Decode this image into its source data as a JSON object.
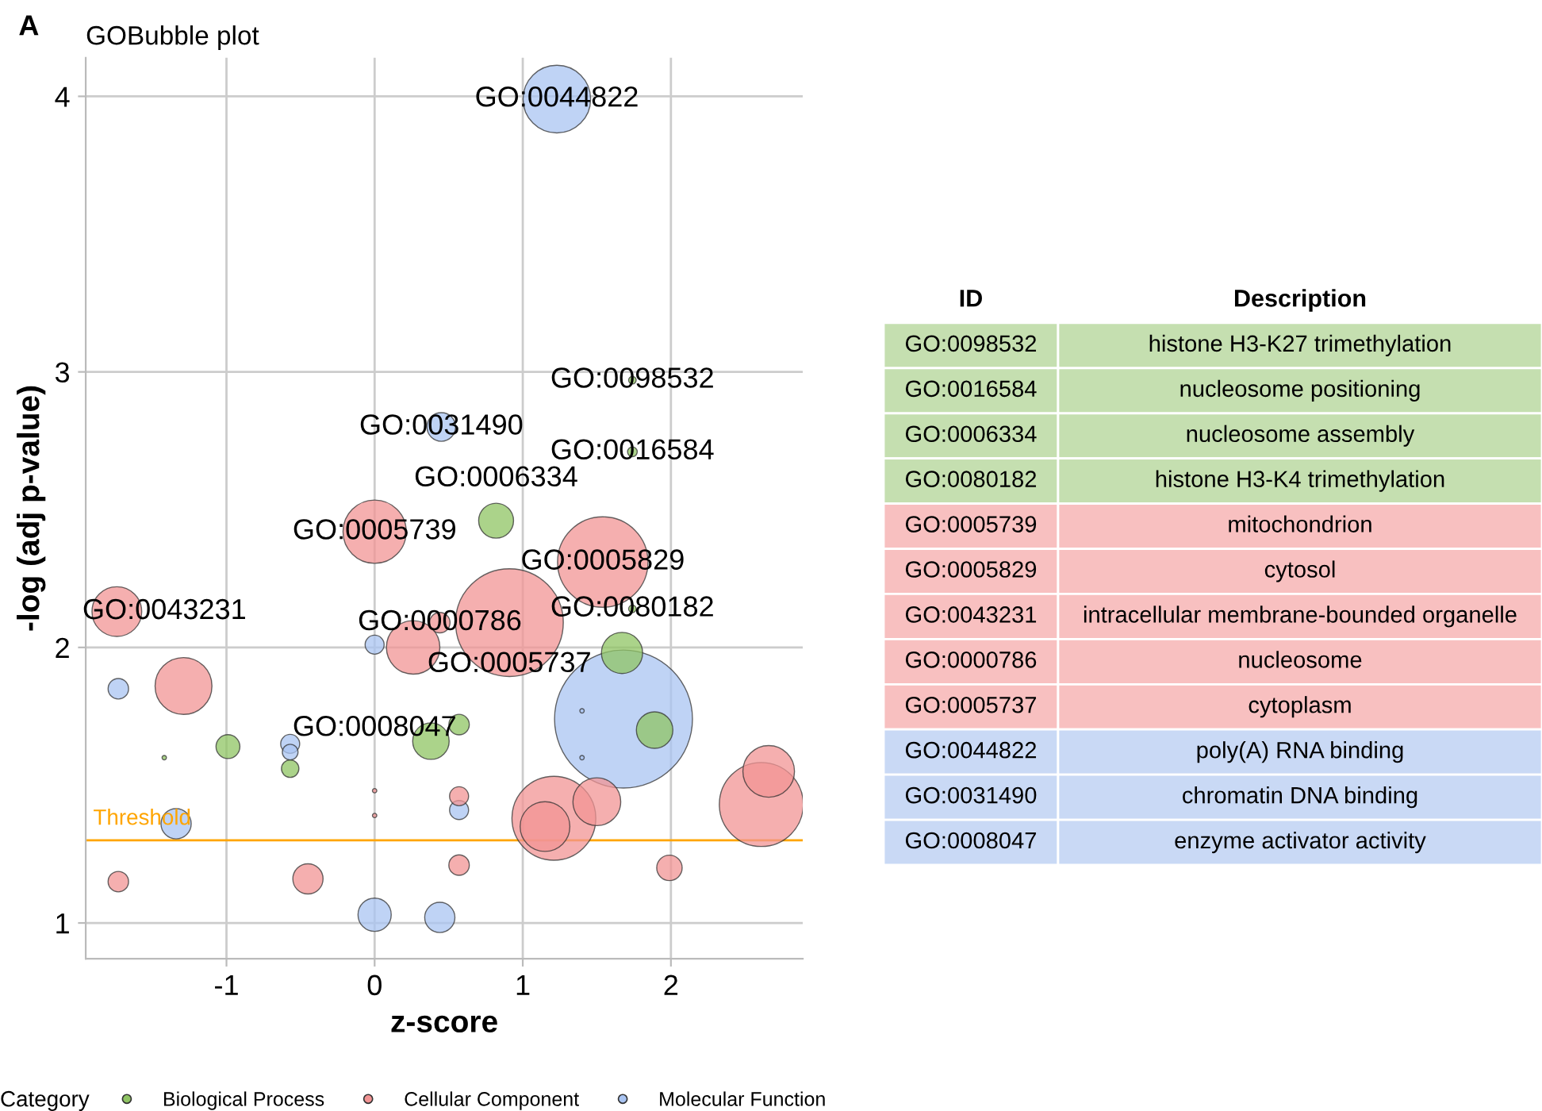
{
  "chart_data": [
    {
      "type": "bubble",
      "title": "GOBubble plot",
      "xlabel": "z-score",
      "ylabel": "-log (adj p-value)",
      "legend_title": "Category",
      "xlim": [
        -1.95,
        2.89
      ],
      "ylim": [
        0.87,
        4.14
      ],
      "xticks": [
        -1,
        0,
        1,
        2
      ],
      "yticks": [
        1,
        2,
        3,
        4
      ],
      "grid": true,
      "legend": "bottom",
      "ref_lines": [
        {
          "axis": "y",
          "value": 1.3,
          "label": "Threshold",
          "color": "#ffa500"
        }
      ],
      "series": [
        {
          "name": "Biological Process",
          "color": "#8fc463",
          "x": [
            1.74,
            1.74,
            0.82,
            1.74,
            1.67,
            1.89,
            -0.99,
            -1.42,
            -0.57,
            0.38,
            0.57
          ],
          "values": [
            2.97,
            2.71,
            2.46,
            2.14,
            1.98,
            1.7,
            1.64,
            1.6,
            1.56,
            1.66,
            1.72
          ],
          "sizes": [
            0.003,
            0.005,
            0.064,
            0.003,
            0.089,
            0.07,
            0.03,
            0.001,
            0.016,
            0.07,
            0.022
          ]
        },
        {
          "name": "Cellular Component",
          "color": "#f29494",
          "x": [
            0.0,
            1.54,
            -1.74,
            0.91,
            0.44,
            0.26,
            -1.29,
            0.0,
            0.0,
            0.57,
            1.21,
            1.15,
            1.5,
            2.61,
            2.66,
            -1.73,
            -0.45,
            0.57,
            1.99
          ],
          "values": [
            2.42,
            2.31,
            2.13,
            2.09,
            2.09,
            2.0,
            1.86,
            1.48,
            1.39,
            1.46,
            1.38,
            1.35,
            1.44,
            1.43,
            1.55,
            1.15,
            1.16,
            1.21,
            1.2
          ],
          "sizes": [
            0.21,
            0.43,
            0.13,
            0.61,
            0.022,
            0.15,
            0.17,
            0.001,
            0.001,
            0.019,
            0.37,
            0.13,
            0.12,
            0.37,
            0.14,
            0.022,
            0.048,
            0.022,
            0.034
          ]
        },
        {
          "name": "Molecular Function",
          "color": "#a9c4f2",
          "x": [
            1.23,
            0.45,
            0.0,
            -1.73,
            1.68,
            1.4,
            1.4,
            -0.57,
            -0.57,
            0.57,
            -1.34,
            0.0,
            0.44
          ],
          "values": [
            3.99,
            2.8,
            2.01,
            1.85,
            1.74,
            1.77,
            1.6,
            1.65,
            1.62,
            1.41,
            1.36,
            1.03,
            1.02
          ],
          "sizes": [
            0.24,
            0.043,
            0.019,
            0.022,
            1,
            0.001,
            0.001,
            0.019,
            0.013,
            0.019,
            0.048,
            0.058,
            0.048
          ]
        }
      ],
      "annotations": [
        "A",
        {
          "text": "GO:0044822",
          "x": 1.23,
          "y": 3.99
        },
        {
          "text": "GO:0098532",
          "x": 1.74,
          "y": 2.97
        },
        {
          "text": "GO:0031490",
          "x": 0.45,
          "y": 2.8
        },
        {
          "text": "GO:0016584",
          "x": 1.74,
          "y": 2.71
        },
        {
          "text": "GO:0005739",
          "x": 0.0,
          "y": 2.42
        },
        {
          "text": "GO:0006334",
          "x": 0.82,
          "y": 2.46
        },
        {
          "text": "GO:0005829",
          "x": 1.54,
          "y": 2.31
        },
        {
          "text": "GO:0043231",
          "x": -1.74,
          "y": 2.13
        },
        {
          "text": "GO:0080182",
          "x": 1.74,
          "y": 2.14
        },
        {
          "text": "GO:0005737",
          "x": 0.91,
          "y": 2.09
        },
        {
          "text": "GO:0000786",
          "x": 0.44,
          "y": 2.09
        },
        {
          "text": "GO:0008047",
          "x": 0.0,
          "y": 2.01
        }
      ]
    },
    {
      "type": "other",
      "categories": [
        "ID",
        "Description"
      ],
      "y_categories": [
        "GO:0098532",
        "GO:0016584",
        "GO:0006334",
        "GO:0080182",
        "GO:0005739",
        "GO:0005829",
        "GO:0043231",
        "GO:0000786",
        "GO:0005737",
        "GO:0044822",
        "GO:0031490",
        "GO:0008047"
      ],
      "y2_categories": [
        "histone H3-K27 trimethylation",
        "nucleosome positioning",
        "nucleosome assembly",
        "histone H3-K4 trimethylation",
        "mitochondrion",
        "cytosol",
        "intracellular membrane-bounded organelle",
        "nucleosome",
        "cytoplasm",
        "poly(A) RNA binding",
        "chromatin DNA binding",
        "enzyme activator activity"
      ],
      "colors": [
        "#c5dfb0",
        "#c5dfb0",
        "#c5dfb0",
        "#c5dfb0",
        "#f8c0c0",
        "#f8c0c0",
        "#f8c0c0",
        "#f8c0c0",
        "#f8c0c0",
        "#c9d9f5",
        "#c9d9f5",
        "#c9d9f5"
      ]
    }
  ]
}
